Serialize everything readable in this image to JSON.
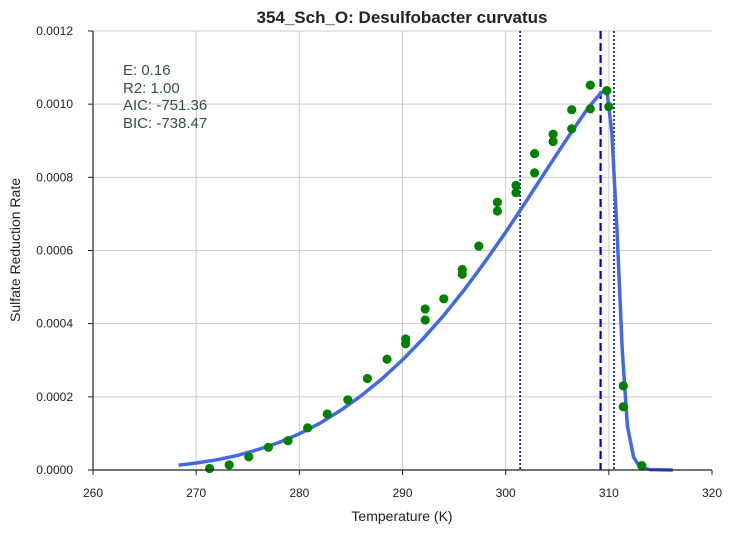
{
  "chart_data": {
    "type": "scatter",
    "title": "354_Sch_O: Desulfobacter curvatus",
    "xlabel": "Temperature (K)",
    "ylabel": "Sulfate Reduction Rate",
    "xlim": [
      260,
      320
    ],
    "ylim": [
      0,
      0.0012
    ],
    "xticks": [
      "260",
      "270",
      "280",
      "290",
      "300",
      "310",
      "320"
    ],
    "yticks": [
      "0.0000",
      "0.0002",
      "0.0004",
      "0.0006",
      "0.0008",
      "0.0010",
      "0.0012"
    ],
    "grid": true,
    "stats": [
      "E:  0.16",
      "R2:  1.00",
      "AIC: -751.36",
      "BIC: -738.47"
    ],
    "colors": {
      "points": "#008000",
      "fit": "#4169e1",
      "vlines": "#0000cc"
    },
    "series": [
      {
        "type": "scatter",
        "x": [
          271.3,
          273.2,
          275.1,
          277.0,
          278.9,
          280.8,
          282.7,
          284.7,
          286.6,
          288.5,
          290.3,
          290.3,
          292.2,
          292.2,
          294.0,
          295.8,
          295.8,
          297.4,
          299.2,
          299.2,
          301.0,
          301.0,
          302.8,
          302.8,
          304.6,
          304.6,
          306.4,
          306.4,
          308.2,
          308.2,
          309.8,
          310.0,
          311.4,
          311.4,
          313.2
        ],
        "y": [
          4e-06,
          1.4e-05,
          3.6e-05,
          6.2e-05,
          8e-05,
          0.000115,
          0.000153,
          0.000192,
          0.00025,
          0.000303,
          0.000345,
          0.000358,
          0.00041,
          0.00044,
          0.000468,
          0.000535,
          0.000548,
          0.000612,
          0.000708,
          0.000732,
          0.000758,
          0.000778,
          0.000812,
          0.000865,
          0.000898,
          0.000918,
          0.000933,
          0.000985,
          0.000987,
          0.001052,
          0.001037,
          0.000993,
          0.000173,
          0.00023,
          1.2e-05
        ]
      },
      {
        "type": "line",
        "x": [
          268.3,
          270,
          272,
          274,
          276,
          278,
          280,
          282,
          284,
          286,
          288,
          290,
          292,
          294,
          296,
          298,
          300,
          302,
          304,
          306,
          308,
          309.2,
          309.8,
          310.3,
          310.8,
          311.3,
          311.8,
          312.4,
          313.0,
          314.0,
          316.2
        ],
        "y": [
          1.3e-05,
          1.9e-05,
          2.8e-05,
          4e-05,
          5.6e-05,
          7.5e-05,
          9.9e-05,
          0.000128,
          0.000163,
          0.000203,
          0.000249,
          0.000301,
          0.000359,
          0.000423,
          0.000493,
          0.000569,
          0.00065,
          0.000735,
          0.000822,
          0.000908,
          0.00099,
          0.00103,
          0.00104,
          0.00092,
          0.00065,
          0.00033,
          0.00012,
          3.5e-05,
          8e-06,
          1e-06,
          0.0
        ]
      }
    ],
    "vlines": [
      {
        "x": 301.4,
        "style": "dotted"
      },
      {
        "x": 309.2,
        "style": "dashed"
      },
      {
        "x": 310.5,
        "style": "dotted"
      }
    ]
  }
}
